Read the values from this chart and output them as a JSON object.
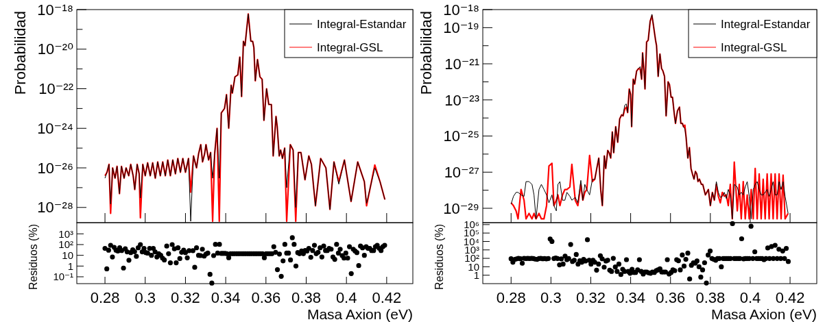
{
  "chart_data": [
    {
      "type": "line",
      "ylabel": "Probabilidad",
      "log": true,
      "legend": "top right",
      "tick_labels": "y",
      "xlim": [
        0.266,
        0.433
      ],
      "xticks": [
        0.28,
        0.3,
        0.32,
        0.34,
        0.36,
        0.38,
        0.4,
        0.42
      ],
      "ylim": [
        1.7e-29,
        1e-18
      ],
      "yticks": [
        {
          "value": 1e-18,
          "label": "10⁻¹⁸"
        },
        {
          "value": 1e-19,
          "label": null
        },
        {
          "value": 1e-20,
          "label": "10⁻²⁰"
        },
        {
          "value": 1e-21,
          "label": null
        },
        {
          "value": 1e-22,
          "label": "10⁻²²"
        },
        {
          "value": 1e-23,
          "label": null
        },
        {
          "value": 1e-24,
          "label": "10⁻²⁴"
        },
        {
          "value": 1e-25,
          "label": null
        },
        {
          "value": 1e-26,
          "label": "10⁻²⁶"
        },
        {
          "value": 1e-27,
          "label": null
        },
        {
          "value": 1e-28,
          "label": "10⁻²⁸"
        }
      ],
      "x": [
        0.28,
        0.281,
        0.282,
        0.2828,
        0.2838,
        0.285,
        0.286,
        0.2872,
        0.2882,
        0.2895,
        0.2905,
        0.2918,
        0.2928,
        0.294,
        0.2948,
        0.296,
        0.297,
        0.2976,
        0.2988,
        0.3,
        0.3012,
        0.3025,
        0.3037,
        0.305,
        0.3062,
        0.3075,
        0.3087,
        0.31,
        0.3112,
        0.3125,
        0.3137,
        0.315,
        0.3162,
        0.3175,
        0.3187,
        0.32,
        0.3215,
        0.3226,
        0.324,
        0.3255,
        0.3265,
        0.3276,
        0.3285,
        0.3295,
        0.3302,
        0.3315,
        0.3325,
        0.3335,
        0.3345,
        0.3357,
        0.3368,
        0.3378,
        0.3394,
        0.3404,
        0.3415,
        0.3427,
        0.3433,
        0.3446,
        0.346,
        0.347,
        0.3479,
        0.3488,
        0.3496,
        0.3512,
        0.3525,
        0.3534,
        0.354,
        0.3547,
        0.3558,
        0.357,
        0.3581,
        0.359,
        0.3603,
        0.3614,
        0.3627,
        0.3636,
        0.365,
        0.3656,
        0.3666,
        0.3673,
        0.3682,
        0.3693,
        0.3703,
        0.3721,
        0.3735,
        0.3748,
        0.3761,
        0.3774,
        0.3794,
        0.3813,
        0.3826,
        0.3846,
        0.3872,
        0.3898,
        0.3918,
        0.3938,
        0.3962,
        0.399,
        0.4023,
        0.4056,
        0.4089,
        0.41,
        0.4141,
        0.4167,
        0.4191
      ],
      "series": [
        {
          "name": "Integral-Estandar",
          "color": "#000000",
          "values": [
            3e-27,
            6e-27,
            1.5e-26,
            1.5e-28,
            1e-26,
            3e-27,
            1.2e-26,
            5e-28,
            1.2e-26,
            3e-27,
            1e-26,
            4e-27,
            1.5e-26,
            4e-27,
            8e-28,
            1.5e-26,
            5e-27,
            3e-28,
            1.5e-26,
            4e-27,
            1.8e-26,
            4e-27,
            1.8e-26,
            3e-27,
            2e-26,
            4e-27,
            2e-26,
            4e-27,
            2.5e-26,
            4e-27,
            2.5e-26,
            5e-27,
            3e-26,
            6e-27,
            3e-26,
            6e-27,
            3e-26,
            2e-29,
            4e-26,
            1e-26,
            5e-26,
            1.5e-25,
            2e-26,
            5e-26,
            1.5e-25,
            2.5e-26,
            6e-26,
            3e-27,
            5e-26,
            1e-24,
            3e-27,
            6e-24,
            1e-23,
            5e-23,
            1e-24,
            1.5e-22,
            6e-23,
            4e-22,
            5e-22,
            4e-21,
            4e-23,
            2.5e-20,
            1.5e-20,
            6e-19,
            2.5e-20,
            2.5e-20,
            1.2e-20,
            2.5e-22,
            3e-21,
            4e-22,
            3e-22,
            2.5e-24,
            1e-22,
            1.6e-23,
            1.6e-23,
            4e-26,
            4e-24,
            1.2e-24,
            4e-26,
            8e-26,
            3e-26,
            1e-25,
            1e-27,
            1.5e-25,
            8e-26,
            1e-28,
            6e-26,
            6e-26,
            2.5e-27,
            4e-26,
            1.5e-26,
            1.2e-28,
            3e-26,
            1e-26,
            8e-29,
            2e-26,
            1.5e-27,
            2.5e-26,
            2e-28,
            2e-26,
            2e-27,
            1.6e-28,
            1e-26,
            2e-27,
            2.5e-28
          ]
        },
        {
          "name": "Integral-GSL",
          "color": "#ff0000",
          "values": [
            4e-27,
            6e-27,
            1.5e-26,
            5e-29,
            1e-26,
            3e-27,
            1.2e-26,
            5e-28,
            1.2e-26,
            3e-27,
            1e-26,
            4e-27,
            1.5e-26,
            4e-27,
            8e-28,
            1.5e-26,
            5e-27,
            3e-29,
            1.5e-26,
            4e-27,
            1.8e-26,
            4e-27,
            1.8e-26,
            3e-27,
            2e-26,
            4e-27,
            2e-26,
            4e-27,
            2.5e-26,
            4e-27,
            2.5e-26,
            5e-27,
            3e-26,
            6e-27,
            3e-26,
            6e-27,
            3e-26,
            6e-28,
            4e-26,
            1e-26,
            5e-26,
            1.5e-25,
            2e-26,
            5e-26,
            1.5e-25,
            2.5e-26,
            6e-26,
            2e-29,
            5e-26,
            1e-24,
            2e-29,
            6e-24,
            1e-23,
            5e-23,
            1e-24,
            1.5e-22,
            6e-23,
            4e-22,
            5e-22,
            4e-21,
            4e-23,
            2.5e-20,
            1.5e-20,
            6e-19,
            2.5e-20,
            2.5e-20,
            1.2e-20,
            2.5e-22,
            3e-21,
            4e-22,
            3e-22,
            2.5e-24,
            1e-22,
            1.6e-23,
            1.6e-23,
            4e-26,
            4e-24,
            1.2e-24,
            4e-26,
            8e-26,
            3e-26,
            1e-25,
            2e-29,
            1.5e-25,
            8e-26,
            2e-29,
            6e-26,
            6e-26,
            2.5e-27,
            4e-26,
            1.5e-26,
            1.2e-28,
            3e-26,
            1e-26,
            8e-29,
            2e-26,
            2e-27,
            2.5e-26,
            2e-28,
            2e-26,
            2e-27,
            1.2e-28,
            1.4e-26,
            2e-27,
            2.5e-28
          ]
        }
      ]
    },
    {
      "type": "scatter",
      "xlabel": "Masa Axion (eV)",
      "ylabel": "Residuos (%)",
      "log": true,
      "marker": "circle",
      "xlim": [
        0.266,
        0.433
      ],
      "xticks": [
        0.28,
        0.3,
        0.32,
        0.34,
        0.36,
        0.38,
        0.4,
        0.42
      ],
      "ylim": [
        0.023,
        11000
      ],
      "yticks": [
        {
          "value": 1000,
          "label": "10³"
        },
        {
          "value": 100,
          "label": "10²"
        },
        {
          "value": 10,
          "label": "10"
        },
        {
          "value": 1,
          "label": "1"
        },
        {
          "value": 0.1,
          "label": "10⁻¹"
        }
      ],
      "series": [
        {
          "color": "#000000",
          "x": [
            0.28,
            0.2809,
            0.2818,
            0.2828,
            0.2837,
            0.2846,
            0.2855,
            0.2864,
            0.2873,
            0.2883,
            0.2892,
            0.2901,
            0.291,
            0.2919,
            0.2928,
            0.2938,
            0.2947,
            0.2956,
            0.2965,
            0.2976,
            0.2985,
            0.2994,
            0.3003,
            0.3012,
            0.3022,
            0.3031,
            0.304,
            0.3049,
            0.3058,
            0.3067,
            0.3077,
            0.3086,
            0.3095,
            0.3107,
            0.3116,
            0.3125,
            0.3134,
            0.3145,
            0.3154,
            0.3163,
            0.3172,
            0.3181,
            0.3191,
            0.32,
            0.3209,
            0.3218,
            0.3237,
            0.3246,
            0.3255,
            0.3265,
            0.3275,
            0.3284,
            0.3293,
            0.3302,
            0.3311,
            0.3322,
            0.3331,
            0.334,
            0.3349,
            0.336,
            0.3369,
            0.3378,
            0.3387,
            0.3397,
            0.3406,
            0.3415,
            0.3424,
            0.3434,
            0.3443,
            0.3453,
            0.3462,
            0.3471,
            0.3481,
            0.349,
            0.3499,
            0.3509,
            0.3518,
            0.3527,
            0.3537,
            0.3546,
            0.3555,
            0.3565,
            0.3574,
            0.3583,
            0.3592,
            0.3601,
            0.361,
            0.362,
            0.363,
            0.3639,
            0.3648,
            0.3657,
            0.3667,
            0.3676,
            0.3685,
            0.3694,
            0.3703,
            0.3712,
            0.3722,
            0.3731,
            0.374,
            0.3749,
            0.3758,
            0.3767,
            0.3777,
            0.3786,
            0.3795,
            0.3804,
            0.3813,
            0.3823,
            0.3832,
            0.3841,
            0.385,
            0.3859,
            0.3869,
            0.3878,
            0.3887,
            0.3896,
            0.3905,
            0.3914,
            0.3924,
            0.3933,
            0.3942,
            0.3951,
            0.396,
            0.3969,
            0.3979,
            0.3988,
            0.3997,
            0.4006,
            0.4015,
            0.4024,
            0.4034,
            0.4043,
            0.4052,
            0.4061,
            0.407,
            0.408,
            0.4089,
            0.4098,
            0.4107,
            0.4116,
            0.4125,
            0.4135,
            0.4144,
            0.4153,
            0.4163,
            0.4172,
            0.4181,
            0.419
          ],
          "values": [
            44,
            0.55,
            30,
            85,
            7,
            55,
            30,
            25,
            50,
            28,
            0.65,
            40,
            21,
            3.5,
            18,
            33,
            22,
            8,
            50,
            100,
            21,
            44,
            18,
            16,
            44,
            10,
            44,
            21,
            7,
            14,
            10,
            5.5,
            3.7,
            72,
            14,
            2,
            100,
            40,
            2,
            50,
            5,
            19,
            30,
            18,
            5.8,
            27,
            27,
            0.76,
            50,
            10,
            9.5,
            37,
            8.5,
            13,
            16,
            0.17,
            0.026,
            9.5,
            105,
            16,
            105,
            15,
            15,
            15,
            14,
            6,
            14,
            14,
            14,
            14,
            14,
            14,
            14,
            14,
            14,
            14,
            14,
            14,
            14,
            14,
            14,
            14,
            14,
            14,
            6,
            14,
            14,
            14,
            14,
            64,
            19,
            0.46,
            13,
            0.11,
            3,
            105,
            16,
            16,
            3.7,
            440,
            105,
            1,
            18,
            14,
            25,
            14,
            28,
            25,
            44,
            6.5,
            28,
            85,
            14,
            19,
            50,
            7,
            72,
            28,
            28,
            44,
            37,
            7,
            4.2,
            105,
            16,
            37,
            9.5,
            5.5,
            16,
            5.5,
            64,
            0.2,
            37,
            25,
            18,
            1.1,
            72,
            50,
            10,
            64,
            44,
            44,
            28,
            28,
            64,
            85,
            44,
            28,
            64,
            85
          ]
        }
      ]
    },
    {
      "type": "line",
      "ylabel": "Probabilidad",
      "log": true,
      "legend": "top right",
      "tick_labels": "y",
      "xlim": [
        0.2658,
        0.4334
      ],
      "xticks": [
        0.28,
        0.3,
        0.32,
        0.34,
        0.36,
        0.38,
        0.4,
        0.42
      ],
      "ylim": [
        1.6e-30,
        1e-18
      ],
      "yticks": [
        {
          "value": 1e-18,
          "label": "10⁻¹⁸"
        },
        {
          "value": 1e-19,
          "label": "10⁻¹⁹"
        },
        {
          "value": 1e-20,
          "label": null
        },
        {
          "value": 1e-21,
          "label": "10⁻²¹"
        },
        {
          "value": 1e-22,
          "label": null
        },
        {
          "value": 1e-23,
          "label": "10⁻²³"
        },
        {
          "value": 1e-24,
          "label": null
        },
        {
          "value": 1e-25,
          "label": "10⁻²⁵"
        },
        {
          "value": 1e-26,
          "label": null
        },
        {
          "value": 1e-27,
          "label": "10⁻²⁷"
        },
        {
          "value": 1e-28,
          "label": null
        },
        {
          "value": 1e-29,
          "label": "10⁻²⁹"
        }
      ],
      "x": [
        0.28,
        0.2812,
        0.2825,
        0.2835,
        0.285,
        0.2865,
        0.2875,
        0.289,
        0.2905,
        0.2915,
        0.2925,
        0.294,
        0.2952,
        0.2965,
        0.2978,
        0.299,
        0.3005,
        0.3015,
        0.3027,
        0.3035,
        0.3045,
        0.3058,
        0.307,
        0.308,
        0.3095,
        0.3105,
        0.3122,
        0.3135,
        0.315,
        0.316,
        0.317,
        0.318,
        0.3194,
        0.3208,
        0.322,
        0.323,
        0.324,
        0.325,
        0.3258,
        0.3268,
        0.3275,
        0.3285,
        0.3292,
        0.33,
        0.3308,
        0.3315,
        0.3325,
        0.3335,
        0.3345,
        0.3355,
        0.3362,
        0.337,
        0.3378,
        0.3385,
        0.3393,
        0.34,
        0.3405,
        0.3413,
        0.342,
        0.343,
        0.344,
        0.3448,
        0.3455,
        0.346,
        0.3467,
        0.3472,
        0.348,
        0.3488,
        0.3498,
        0.3507,
        0.3515,
        0.3525,
        0.353,
        0.3538,
        0.3547,
        0.3555,
        0.3562,
        0.357,
        0.3578,
        0.3588,
        0.3595,
        0.3603,
        0.361,
        0.362,
        0.3625,
        0.3635,
        0.3645,
        0.3652,
        0.366,
        0.3665,
        0.3672,
        0.3678,
        0.3687,
        0.3695,
        0.3703,
        0.371,
        0.3718,
        0.3725,
        0.3732,
        0.3738,
        0.3745,
        0.3755,
        0.3762,
        0.3775,
        0.379,
        0.38,
        0.381,
        0.382,
        0.383,
        0.384,
        0.385,
        0.386,
        0.387,
        0.388,
        0.389,
        0.39,
        0.391,
        0.392,
        0.3935,
        0.3945,
        0.3955,
        0.3965,
        0.3975,
        0.3985,
        0.3995,
        0.4005,
        0.4015,
        0.4025,
        0.4035,
        0.4045,
        0.4055,
        0.4065,
        0.4075,
        0.4085,
        0.4095,
        0.4105,
        0.4115,
        0.4125,
        0.4135,
        0.4145,
        0.4155,
        0.4165,
        0.4175,
        0.419
      ],
      "series": [
        {
          "name": "Integral-Estandar",
          "color": "#000000",
          "values": [
            1.7e-29,
            4.6e-29,
            7.6e-29,
            7.6e-29,
            5.5e-29,
            4.6e-29,
            3e-28,
            3e-28,
            2.1e-28,
            5.5e-29,
            2.6e-30,
            1.1e-28,
            2.1e-28,
            1.1e-28,
            5.5e-29,
            2e-29,
            5.5e-29,
            1.4e-29,
            7.2e-30,
            2.1e-28,
            3e-28,
            2.8e-29,
            2.8e-29,
            7.6e-29,
            4.6e-29,
            2.8e-29,
            4e-29,
            2e-29,
            3.5e-28,
            2.8e-29,
            2.1e-28,
            1.1e-28,
            5.5e-29,
            4e-28,
            4e-28,
            1.6e-27,
            6e-27,
            1e-28,
            1.4e-29,
            8e-27,
            1.6e-27,
            1.6e-26,
            1.2e-26,
            6e-27,
            1.7e-25,
            1.2e-26,
            3.3e-25,
            4.5e-26,
            9e-25,
            1.5e-24,
            1.3e-24,
            5e-24,
            6e-24,
            2e-24,
            4e-23,
            2e-23,
            3.3e-25,
            1.4e-22,
            7.5e-23,
            4e-22,
            5.5e-22,
            7e-22,
            1.4e-22,
            4e-21,
            4e-22,
            4e-23,
            1.6e-20,
            2e-20,
            2.3e-19,
            5.5e-19,
            1.2e-19,
            2e-20,
            1e-20,
            2e-22,
            3.5e-21,
            5.5e-22,
            4e-22,
            2e-22,
            1.3e-24,
            1e-22,
            7e-23,
            1.4e-23,
            1.4e-23,
            1.3e-24,
            5e-25,
            2.5e-24,
            4e-24,
            5e-25,
            5e-25,
            3.3e-25,
            2.5e-25,
            9e-26,
            6e-27,
            2.3e-26,
            1.6e-27,
            8e-28,
            4.1e-28,
            1.1e-27,
            8e-28,
            3e-28,
            4.1e-28,
            2.1e-28,
            2.1e-28,
            5.5e-29,
            1.1e-28,
            1.4e-29,
            7.6e-29,
            2.8e-29,
            3e-28,
            7.6e-29,
            4e-29,
            4.6e-29,
            7.6e-29,
            3.5e-29,
            1.1e-28,
            5.5e-29,
            2.6e-30,
            2.1e-28,
            1.5e-28,
            5.5e-29,
            7.6e-29,
            5.5e-29,
            1.5e-28,
            3e-28,
            4.6e-29,
            2.6e-30,
            1.1e-28,
            2.1e-28,
            3e-28,
            1.1e-28,
            5.5e-29,
            5.5e-29,
            7.6e-29,
            1.1e-28,
            4.6e-29,
            1.1e-28,
            3e-28,
            5.5e-29,
            5.5e-29,
            3e-28,
            1.1e-28,
            3e-28,
            4.6e-29,
            5.2e-30
          ]
        },
        {
          "name": "Integral-GSL",
          "color": "#ff0000",
          "values": [
            2e-29,
            1.4e-29,
            7.2e-30,
            2.6e-30,
            1.1e-28,
            2.8e-29,
            2.6e-30,
            5.2e-30,
            2.6e-30,
            5.2e-30,
            2.6e-30,
            5.2e-30,
            2.6e-30,
            2.6e-30,
            1.4e-29,
            2.2e-27,
            3.1e-27,
            1.4e-29,
            2.8e-29,
            5.5e-29,
            1.4e-29,
            5.5e-29,
            1.1e-28,
            1.1e-28,
            1.5e-28,
            2.7e-27,
            2.8e-29,
            1.4e-29,
            2.1e-28,
            2.8e-29,
            7.6e-29,
            1.1e-28,
            8.5e-27,
            3e-28,
            4e-28,
            1.6e-27,
            6e-27,
            1e-28,
            1.4e-29,
            8e-27,
            1.6e-27,
            1.6e-26,
            1.2e-26,
            6e-27,
            1.7e-25,
            1.2e-26,
            3.3e-25,
            4.5e-26,
            9e-25,
            1.5e-24,
            1.3e-24,
            3e-24,
            4e-24,
            2e-24,
            4e-23,
            2e-23,
            3.3e-25,
            1.4e-22,
            7.5e-23,
            4e-22,
            5.5e-22,
            5e-22,
            1.4e-22,
            4e-21,
            4e-22,
            4e-23,
            1.6e-20,
            2e-20,
            2.3e-19,
            4.5e-19,
            1.2e-19,
            2e-20,
            1e-20,
            2e-22,
            3.5e-21,
            5.5e-22,
            4e-22,
            2e-22,
            1.3e-24,
            1e-22,
            7e-23,
            1.4e-23,
            1.4e-23,
            1.3e-24,
            5e-25,
            2.5e-24,
            4e-24,
            5e-25,
            5e-25,
            3.3e-25,
            4e-25,
            9e-26,
            6e-27,
            2.3e-26,
            1.6e-27,
            8e-28,
            4.1e-28,
            1.1e-27,
            8e-28,
            3e-28,
            4.1e-28,
            2.1e-28,
            2.1e-28,
            5.5e-29,
            1.1e-28,
            1.4e-29,
            7.6e-29,
            2.8e-29,
            2.1e-28,
            4.6e-29,
            2e-29,
            7.6e-29,
            4.6e-29,
            5.5e-29,
            1.4e-29,
            2.1e-28,
            2.6e-30,
            3.6e-27,
            7.2e-30,
            2.1e-28,
            2.6e-30,
            3e-28,
            2.6e-30,
            5.5e-29,
            2.6e-30,
            1.1e-28,
            2.6e-30,
            1.6e-27,
            2.6e-30,
            8e-28,
            2.6e-30,
            4.1e-28,
            2.6e-30,
            8e-28,
            2.6e-30,
            8e-28,
            2.6e-30,
            8e-28,
            2.6e-30,
            8e-28,
            2.6e-30,
            6.8e-28,
            2.6e-30,
            5.2e-30
          ]
        }
      ]
    },
    {
      "type": "scatter",
      "xlabel": "Masa Axion (eV)",
      "ylabel": "Residuos (%)",
      "log": true,
      "marker": "circle",
      "xlim": [
        0.2658,
        0.4334
      ],
      "xticks": [
        0.28,
        0.3,
        0.32,
        0.34,
        0.36,
        0.38,
        0.4,
        0.42
      ],
      "ylim": [
        0.1,
        1700000
      ],
      "yticks": [
        {
          "value": 1000000,
          "label": "10⁶"
        },
        {
          "value": 100000,
          "label": "10⁵"
        },
        {
          "value": 10000,
          "label": "10⁴"
        },
        {
          "value": 1000,
          "label": "10³"
        },
        {
          "value": 100,
          "label": "10²"
        },
        {
          "value": 10,
          "label": "10"
        },
        {
          "value": 1,
          "label": "1"
        }
      ],
      "series": [
        {
          "color": "#000000",
          "x": [
            0.28,
            0.2809,
            0.2819,
            0.2828,
            0.2837,
            0.2847,
            0.2856,
            0.2865,
            0.2875,
            0.2884,
            0.2893,
            0.2903,
            0.2912,
            0.2921,
            0.2931,
            0.294,
            0.2949,
            0.2959,
            0.2968,
            0.2977,
            0.2987,
            0.2996,
            0.3005,
            0.3015,
            0.3024,
            0.3033,
            0.3043,
            0.3052,
            0.3061,
            0.3071,
            0.308,
            0.3089,
            0.3099,
            0.3108,
            0.3117,
            0.3127,
            0.3136,
            0.3145,
            0.3155,
            0.3164,
            0.3173,
            0.3183,
            0.3192,
            0.3201,
            0.3211,
            0.322,
            0.3229,
            0.3239,
            0.3248,
            0.3257,
            0.3267,
            0.3276,
            0.3285,
            0.3295,
            0.3304,
            0.3313,
            0.3323,
            0.3332,
            0.3341,
            0.3351,
            0.336,
            0.3369,
            0.3379,
            0.3388,
            0.3397,
            0.3407,
            0.3416,
            0.3425,
            0.3435,
            0.3444,
            0.3453,
            0.3463,
            0.3472,
            0.3481,
            0.3491,
            0.35,
            0.3509,
            0.3519,
            0.3528,
            0.3537,
            0.3547,
            0.3556,
            0.3565,
            0.3575,
            0.3584,
            0.3593,
            0.3603,
            0.3612,
            0.3621,
            0.3631,
            0.364,
            0.3649,
            0.3659,
            0.3668,
            0.3677,
            0.3687,
            0.3696,
            0.3705,
            0.3715,
            0.3724,
            0.3733,
            0.3743,
            0.3752,
            0.3761,
            0.3771,
            0.378,
            0.3789,
            0.3799,
            0.3808,
            0.3817,
            0.3827,
            0.3836,
            0.3845,
            0.3855,
            0.3864,
            0.3873,
            0.3883,
            0.3892,
            0.3901,
            0.3911,
            0.392,
            0.3929,
            0.3939,
            0.3948,
            0.3957,
            0.3967,
            0.3976,
            0.3985,
            0.3995,
            0.4004,
            0.4013,
            0.4023,
            0.4032,
            0.4041,
            0.4051,
            0.406,
            0.4069,
            0.4079,
            0.4088,
            0.4097,
            0.4107,
            0.4116,
            0.4125,
            0.4135,
            0.4144,
            0.4153,
            0.4163,
            0.4172,
            0.4181,
            0.4191
          ],
          "values": [
            90,
            34,
            75,
            87,
            100,
            90,
            26,
            100,
            95,
            100,
            95,
            100,
            95,
            80,
            75,
            95,
            100,
            90,
            95,
            85,
            95,
            20000,
            10000,
            95,
            110,
            95,
            17,
            85,
            21,
            180,
            70,
            95,
            4400,
            42,
            60,
            290,
            21,
            52,
            34,
            75,
            49,
            16000,
            60,
            21,
            60,
            34,
            4,
            21,
            200,
            87,
            8.9,
            49,
            60,
            4,
            2.8,
            100,
            9.5,
            2.8,
            21,
            1.2,
            5,
            2.8,
            70,
            2.8,
            1.7,
            5,
            2.1,
            2.1,
            4.3,
            70,
            2.8,
            1.4,
            2.4,
            2.4,
            1.9,
            1.7,
            2.4,
            2.1,
            3.5,
            4.3,
            5.7,
            2.4,
            2.4,
            2.4,
            70,
            1.4,
            2.1,
            4.3,
            3.5,
            70,
            52,
            4.3,
            250,
            12,
            75,
            420,
            0.36,
            15,
            30,
            26,
            49,
            10,
            0.6,
            4.3,
            30,
            0.12,
            250,
            740,
            95,
            75,
            60,
            95,
            95,
            10,
            95,
            95,
            95,
            95,
            95,
            1300000,
            95,
            95,
            95,
            95,
            21000,
            85,
            95,
            95,
            95,
            640000,
            95,
            600,
            95,
            95,
            95,
            95,
            70,
            95,
            1700,
            95,
            2500,
            95,
            3500,
            95,
            1200,
            95,
            740,
            95,
            1500,
            42
          ]
        }
      ]
    }
  ]
}
